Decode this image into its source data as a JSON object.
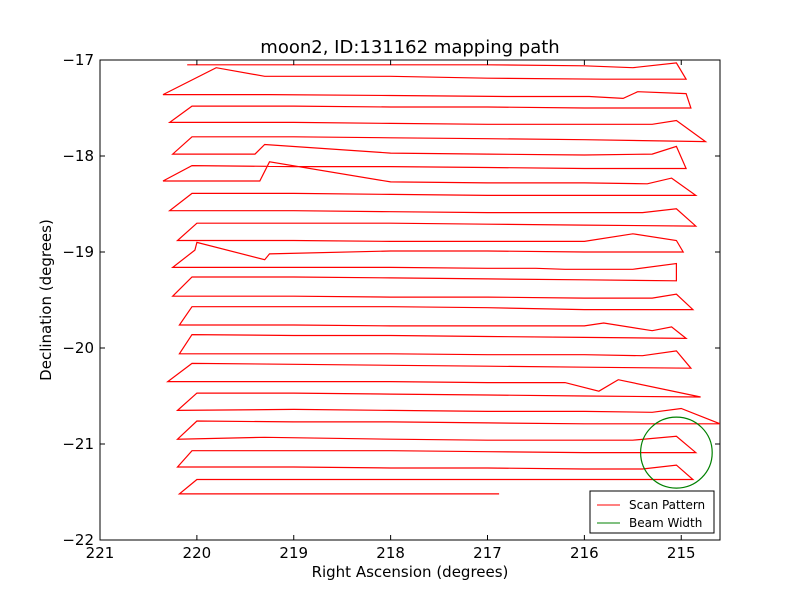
{
  "chart_data": {
    "type": "line",
    "title": "moon2, ID:131162 mapping path",
    "xlabel": "Right Ascension (degrees)",
    "ylabel": "Declination (degrees)",
    "xlim": [
      221.0,
      214.6
    ],
    "ylim": [
      -22,
      -17
    ],
    "x_inverted": true,
    "xticks": [
      221,
      220,
      219,
      218,
      217,
      216,
      215
    ],
    "yticks": [
      -22,
      -21,
      -20,
      -19,
      -18,
      -17
    ],
    "grid": false,
    "legend_position": "lower-right",
    "legend": [
      {
        "name": "Scan Pattern",
        "color": "#ff0000"
      },
      {
        "name": "Beam Width",
        "color": "#008000"
      }
    ],
    "series": [
      {
        "name": "Scan Pattern",
        "color": "#ff0000",
        "points": [
          [
            220.1,
            -17.05
          ],
          [
            219.0,
            -17.05
          ],
          [
            218.0,
            -17.05
          ],
          [
            217.0,
            -17.05
          ],
          [
            216.0,
            -17.06
          ],
          [
            215.5,
            -17.08
          ],
          [
            215.05,
            -17.03
          ],
          [
            214.95,
            -17.2
          ],
          [
            215.8,
            -17.2
          ],
          [
            217.0,
            -17.19
          ],
          [
            218.0,
            -17.17
          ],
          [
            219.3,
            -17.17
          ],
          [
            219.8,
            -17.08
          ],
          [
            220.35,
            -17.36
          ],
          [
            219.25,
            -17.36
          ],
          [
            218.0,
            -17.37
          ],
          [
            216.8,
            -17.38
          ],
          [
            215.95,
            -17.38
          ],
          [
            215.6,
            -17.4
          ],
          [
            215.45,
            -17.33
          ],
          [
            214.95,
            -17.35
          ],
          [
            214.9,
            -17.5
          ],
          [
            216.0,
            -17.5
          ],
          [
            217.0,
            -17.49
          ],
          [
            218.0,
            -17.49
          ],
          [
            219.0,
            -17.48
          ],
          [
            220.05,
            -17.48
          ],
          [
            220.28,
            -17.65
          ],
          [
            219.0,
            -17.65
          ],
          [
            218.0,
            -17.66
          ],
          [
            217.0,
            -17.67
          ],
          [
            216.0,
            -17.67
          ],
          [
            215.3,
            -17.67
          ],
          [
            215.05,
            -17.63
          ],
          [
            214.75,
            -17.85
          ],
          [
            216.0,
            -17.83
          ],
          [
            217.0,
            -17.82
          ],
          [
            218.0,
            -17.81
          ],
          [
            219.0,
            -17.8
          ],
          [
            220.05,
            -17.8
          ],
          [
            220.25,
            -17.98
          ],
          [
            219.4,
            -17.98
          ],
          [
            219.3,
            -17.88
          ],
          [
            218.0,
            -17.97
          ],
          [
            217.0,
            -17.98
          ],
          [
            216.0,
            -17.99
          ],
          [
            215.3,
            -17.98
          ],
          [
            215.05,
            -17.9
          ],
          [
            214.95,
            -18.13
          ],
          [
            216.0,
            -18.13
          ],
          [
            217.0,
            -18.12
          ],
          [
            218.0,
            -18.11
          ],
          [
            219.0,
            -18.11
          ],
          [
            220.05,
            -18.1
          ],
          [
            220.35,
            -18.26
          ],
          [
            219.35,
            -18.26
          ],
          [
            219.25,
            -18.06
          ],
          [
            218.0,
            -18.27
          ],
          [
            217.0,
            -18.28
          ],
          [
            216.0,
            -18.28
          ],
          [
            215.35,
            -18.29
          ],
          [
            215.1,
            -18.23
          ],
          [
            214.85,
            -18.41
          ],
          [
            216.0,
            -18.41
          ],
          [
            217.0,
            -18.41
          ],
          [
            218.0,
            -18.4
          ],
          [
            219.0,
            -18.39
          ],
          [
            220.05,
            -18.39
          ],
          [
            220.28,
            -18.57
          ],
          [
            219.0,
            -18.57
          ],
          [
            218.0,
            -18.58
          ],
          [
            217.0,
            -18.59
          ],
          [
            216.0,
            -18.59
          ],
          [
            215.4,
            -18.59
          ],
          [
            215.05,
            -18.55
          ],
          [
            214.85,
            -18.73
          ],
          [
            216.0,
            -18.72
          ],
          [
            217.0,
            -18.71
          ],
          [
            218.0,
            -18.7
          ],
          [
            219.0,
            -18.7
          ],
          [
            220.0,
            -18.7
          ],
          [
            220.2,
            -18.88
          ],
          [
            219.0,
            -18.88
          ],
          [
            218.0,
            -18.89
          ],
          [
            217.0,
            -18.89
          ],
          [
            216.0,
            -18.89
          ],
          [
            215.5,
            -18.81
          ],
          [
            215.05,
            -18.88
          ],
          [
            214.98,
            -19.0
          ],
          [
            216.0,
            -19.0
          ],
          [
            217.0,
            -18.99
          ],
          [
            218.0,
            -18.99
          ],
          [
            219.25,
            -19.02
          ],
          [
            219.3,
            -19.08
          ],
          [
            220.0,
            -18.9
          ],
          [
            220.02,
            -18.98
          ],
          [
            220.25,
            -19.16
          ],
          [
            219.0,
            -19.16
          ],
          [
            218.0,
            -19.16
          ],
          [
            217.0,
            -19.17
          ],
          [
            216.5,
            -19.17
          ],
          [
            216.2,
            -19.18
          ],
          [
            215.5,
            -19.18
          ],
          [
            215.05,
            -19.12
          ],
          [
            215.05,
            -19.3
          ],
          [
            216.0,
            -19.29
          ],
          [
            217.0,
            -19.28
          ],
          [
            218.0,
            -19.27
          ],
          [
            219.0,
            -19.26
          ],
          [
            220.05,
            -19.26
          ],
          [
            220.25,
            -19.46
          ],
          [
            219.0,
            -19.46
          ],
          [
            218.0,
            -19.47
          ],
          [
            217.0,
            -19.47
          ],
          [
            216.0,
            -19.48
          ],
          [
            215.3,
            -19.48
          ],
          [
            215.05,
            -19.44
          ],
          [
            214.88,
            -19.6
          ],
          [
            216.0,
            -19.6
          ],
          [
            217.0,
            -19.58
          ],
          [
            218.0,
            -19.57
          ],
          [
            219.0,
            -19.57
          ],
          [
            220.05,
            -19.57
          ],
          [
            220.18,
            -19.76
          ],
          [
            219.0,
            -19.76
          ],
          [
            218.0,
            -19.77
          ],
          [
            217.0,
            -19.77
          ],
          [
            216.0,
            -19.77
          ],
          [
            215.8,
            -19.74
          ],
          [
            215.3,
            -19.82
          ],
          [
            215.1,
            -19.78
          ],
          [
            214.95,
            -19.9
          ],
          [
            216.0,
            -19.89
          ],
          [
            217.0,
            -19.88
          ],
          [
            218.0,
            -19.87
          ],
          [
            219.0,
            -19.87
          ],
          [
            220.05,
            -19.86
          ],
          [
            220.18,
            -20.06
          ],
          [
            219.0,
            -20.06
          ],
          [
            218.0,
            -20.06
          ],
          [
            217.0,
            -20.07
          ],
          [
            216.0,
            -20.07
          ],
          [
            215.4,
            -20.08
          ],
          [
            215.05,
            -20.03
          ],
          [
            214.9,
            -20.21
          ],
          [
            216.0,
            -20.2
          ],
          [
            217.0,
            -20.19
          ],
          [
            218.0,
            -20.18
          ],
          [
            219.0,
            -20.17
          ],
          [
            220.05,
            -20.16
          ],
          [
            220.3,
            -20.35
          ],
          [
            219.0,
            -20.35
          ],
          [
            218.0,
            -20.35
          ],
          [
            217.0,
            -20.36
          ],
          [
            216.2,
            -20.36
          ],
          [
            215.85,
            -20.45
          ],
          [
            215.65,
            -20.33
          ],
          [
            214.8,
            -20.51
          ],
          [
            216.0,
            -20.5
          ],
          [
            217.0,
            -20.49
          ],
          [
            218.0,
            -20.48
          ],
          [
            219.0,
            -20.47
          ],
          [
            220.0,
            -20.47
          ],
          [
            220.2,
            -20.65
          ],
          [
            219.0,
            -20.64
          ],
          [
            218.0,
            -20.65
          ],
          [
            217.0,
            -20.66
          ],
          [
            216.0,
            -20.66
          ],
          [
            215.3,
            -20.67
          ],
          [
            215.0,
            -20.63
          ],
          [
            214.6,
            -20.79
          ],
          [
            216.0,
            -20.79
          ],
          [
            217.0,
            -20.78
          ],
          [
            218.0,
            -20.77
          ],
          [
            219.0,
            -20.77
          ],
          [
            220.0,
            -20.76
          ],
          [
            220.2,
            -20.95
          ],
          [
            219.3,
            -20.93
          ],
          [
            218.0,
            -20.95
          ],
          [
            217.0,
            -20.96
          ],
          [
            216.0,
            -20.96
          ],
          [
            215.5,
            -20.96
          ],
          [
            215.05,
            -20.92
          ],
          [
            214.85,
            -21.09
          ],
          [
            216.0,
            -21.09
          ],
          [
            217.0,
            -21.08
          ],
          [
            218.0,
            -21.07
          ],
          [
            219.0,
            -21.07
          ],
          [
            220.05,
            -21.07
          ],
          [
            220.2,
            -21.24
          ],
          [
            219.0,
            -21.24
          ],
          [
            218.0,
            -21.25
          ],
          [
            217.0,
            -21.25
          ],
          [
            216.0,
            -21.26
          ],
          [
            215.4,
            -21.26
          ],
          [
            215.05,
            -21.22
          ],
          [
            214.88,
            -21.37
          ],
          [
            216.0,
            -21.37
          ],
          [
            217.0,
            -21.37
          ],
          [
            218.0,
            -21.37
          ],
          [
            219.0,
            -21.37
          ],
          [
            220.0,
            -21.37
          ],
          [
            220.18,
            -21.52
          ],
          [
            219.0,
            -21.52
          ],
          [
            218.0,
            -21.52
          ],
          [
            216.88,
            -21.52
          ]
        ]
      },
      {
        "name": "Beam Width",
        "color": "#008000",
        "shape": "circle",
        "center": [
          215.05,
          -21.09
        ],
        "radius": 0.37
      }
    ]
  }
}
